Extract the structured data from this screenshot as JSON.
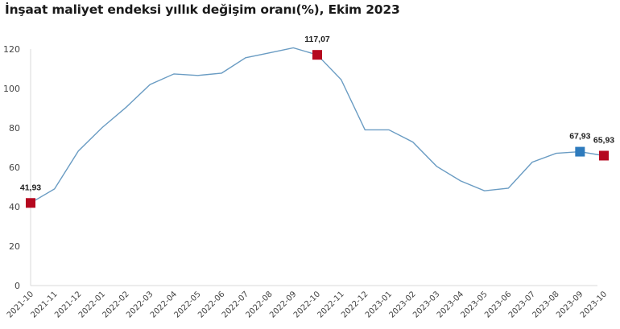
{
  "title": "İnşaat maliyet endeksi yıllık değişim oranı(%), Ekim 2023",
  "colors": {
    "line": "#6a9cc3",
    "marker_red": "#b5081f",
    "marker_blue": "#2e7bbd",
    "axis": "#d9d9d9",
    "tick_text": "#444444"
  },
  "chart_data": {
    "type": "line",
    "title": "İnşaat maliyet endeksi yıllık değişim oranı(%), Ekim 2023",
    "xlabel": "",
    "ylabel": "",
    "ylim": [
      0,
      120
    ],
    "yticks": [
      0,
      20,
      40,
      60,
      80,
      100,
      120
    ],
    "grid": false,
    "legend": null,
    "categories": [
      "2021-10",
      "2021-11",
      "2021-12",
      "2022-01",
      "2022-02",
      "2022-03",
      "2022-04",
      "2022-05",
      "2022-06",
      "2022-07",
      "2022-08",
      "2022-09",
      "2022-10",
      "2022-11",
      "2022-12",
      "2023-01",
      "2023-02",
      "2023-03",
      "2023-04",
      "2023-05",
      "2023-06",
      "2023-07",
      "2023-08",
      "2023-09",
      "2023-10"
    ],
    "series": [
      {
        "name": "Yıllık değişim oranı (%)",
        "values": [
          41.93,
          49.0,
          68.3,
          80.2,
          90.5,
          102.0,
          107.4,
          106.6,
          107.8,
          115.6,
          118.1,
          120.6,
          117.07,
          104.5,
          79.0,
          79.0,
          72.8,
          60.5,
          53.1,
          48.1,
          49.4,
          62.6,
          67.1,
          67.93,
          65.93
        ]
      }
    ],
    "annotations": [
      {
        "category": "2021-10",
        "label": "41,93",
        "marker": "red-square"
      },
      {
        "category": "2022-10",
        "label": "117,07",
        "marker": "red-square"
      },
      {
        "category": "2023-09",
        "label": "67,93",
        "marker": "blue-square"
      },
      {
        "category": "2023-10",
        "label": "65,93",
        "marker": "red-square"
      }
    ]
  }
}
